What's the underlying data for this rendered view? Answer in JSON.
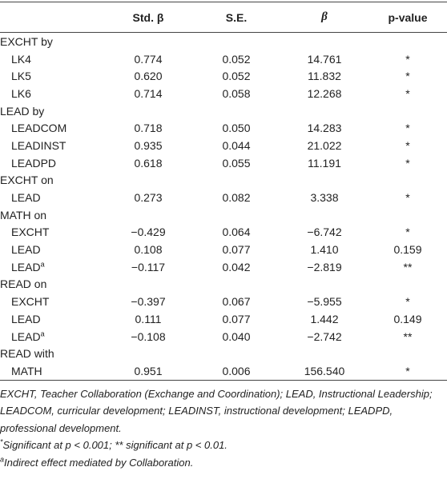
{
  "table": {
    "header": [
      "",
      "Std. β",
      "S.E.",
      "β",
      "p-value"
    ],
    "groups": [
      {
        "label": "EXCHT by",
        "rows": [
          {
            "label": "LK4",
            "cells": [
              "0.774",
              "0.052",
              "14.761",
              "*"
            ]
          },
          {
            "label": "LK5",
            "cells": [
              "0.620",
              "0.052",
              "11.832",
              "*"
            ]
          },
          {
            "label": "LK6",
            "cells": [
              "0.714",
              "0.058",
              "12.268",
              "*"
            ]
          }
        ]
      },
      {
        "label": "LEAD by",
        "rows": [
          {
            "label": "LEADCOM",
            "cells": [
              "0.718",
              "0.050",
              "14.283",
              "*"
            ]
          },
          {
            "label": "LEADINST",
            "cells": [
              "0.935",
              "0.044",
              "21.022",
              "*"
            ]
          },
          {
            "label": "LEADPD",
            "cells": [
              "0.618",
              "0.055",
              "11.191",
              "*"
            ]
          }
        ]
      },
      {
        "label": "EXCHT on",
        "rows": [
          {
            "label": "LEAD",
            "cells": [
              "0.273",
              "0.082",
              "3.338",
              "*"
            ]
          }
        ]
      },
      {
        "label": "MATH on",
        "rows": [
          {
            "label": "EXCHT",
            "cells": [
              "−0.429",
              "0.064",
              "−6.742",
              "*"
            ]
          },
          {
            "label": "LEAD",
            "cells": [
              "0.108",
              "0.077",
              "1.410",
              "0.159"
            ]
          },
          {
            "label": "LEAD",
            "note": "a",
            "cells": [
              "−0.117",
              "0.042",
              "−2.819",
              "**"
            ]
          }
        ]
      },
      {
        "label": "READ on",
        "rows": [
          {
            "label": "EXCHT",
            "cells": [
              "−0.397",
              "0.067",
              "−5.955",
              "*"
            ]
          },
          {
            "label": "LEAD",
            "cells": [
              "0.111",
              "0.077",
              "1.442",
              "0.149"
            ]
          },
          {
            "label": "LEAD",
            "note": "a",
            "cells": [
              "−0.108",
              "0.040",
              "−2.742",
              "**"
            ]
          }
        ]
      },
      {
        "label": "READ with",
        "rows": [
          {
            "label": "MATH",
            "cells": [
              "0.951",
              "0.006",
              "156.540",
              "*"
            ]
          }
        ]
      }
    ]
  },
  "footnotes": [
    {
      "text": "EXCHT, Teacher Collaboration (Exchange and Coordination); LEAD, Instructional Leadership; LEADCOM, curricular development; LEADINST, instructional development; LEADPD, professional development."
    },
    {
      "mark": "*",
      "text": "Significant at p < 0.001; ** significant at p < 0.01."
    },
    {
      "mark": "a",
      "text": "Indirect effect mediated by Collaboration."
    }
  ]
}
